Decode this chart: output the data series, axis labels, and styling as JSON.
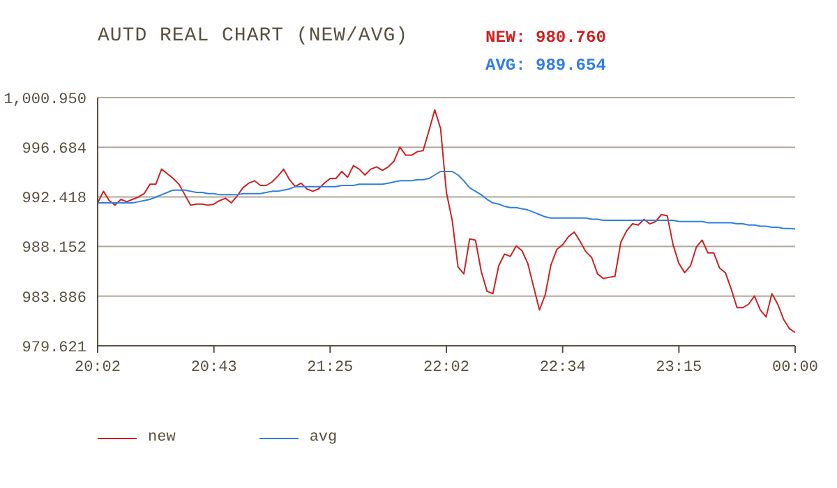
{
  "chart_data": {
    "type": "line",
    "title": "AUTD REAL CHART (NEW/AVG)",
    "annotations": [
      "NEW: 980.760",
      "AVG: 989.654"
    ],
    "categories": [
      "20:02",
      null,
      null,
      null,
      null,
      null,
      null,
      null,
      null,
      null,
      null,
      null,
      null,
      null,
      null,
      null,
      null,
      null,
      null,
      null,
      "20:43",
      null,
      null,
      null,
      null,
      null,
      null,
      null,
      null,
      null,
      null,
      null,
      null,
      null,
      null,
      null,
      null,
      null,
      null,
      null,
      "21:25",
      null,
      null,
      null,
      null,
      null,
      null,
      null,
      null,
      null,
      null,
      null,
      null,
      null,
      null,
      null,
      null,
      null,
      null,
      null,
      "22:02",
      null,
      null,
      null,
      null,
      null,
      null,
      null,
      null,
      null,
      null,
      null,
      null,
      null,
      null,
      null,
      null,
      null,
      null,
      null,
      "22:34",
      null,
      null,
      null,
      null,
      null,
      null,
      null,
      null,
      null,
      null,
      null,
      null,
      null,
      null,
      null,
      null,
      null,
      null,
      null,
      "23:15",
      null,
      null,
      null,
      null,
      null,
      null,
      null,
      null,
      null,
      null,
      null,
      null,
      null,
      null,
      null,
      null,
      null,
      null,
      null,
      "00:00"
    ],
    "ylim": [
      979.621,
      1000.95
    ],
    "yticks": [
      979.621,
      983.886,
      988.152,
      992.418,
      996.684,
      {
        "value": 1000.95,
        "label": "1,000.950"
      }
    ],
    "grid": "y",
    "legend": "bottom left",
    "marker": "none",
    "line_style": "solid",
    "series": [
      {
        "name": "new",
        "color": "#cc2222",
        "values": [
          991.9,
          992.9,
          992.1,
          991.7,
          992.2,
          992.0,
          992.2,
          992.4,
          992.7,
          993.5,
          993.5,
          994.8,
          994.4,
          994.0,
          993.5,
          992.6,
          991.7,
          991.8,
          991.8,
          991.7,
          991.8,
          992.1,
          992.3,
          991.9,
          992.5,
          993.2,
          993.6,
          993.8,
          993.4,
          993.4,
          993.7,
          994.2,
          994.8,
          993.9,
          993.3,
          993.6,
          993.1,
          992.9,
          993.1,
          993.6,
          994.0,
          994.0,
          994.6,
          994.1,
          995.1,
          994.8,
          994.3,
          994.8,
          995.0,
          994.7,
          995.0,
          995.5,
          996.7,
          996.0,
          996.0,
          996.3,
          996.4,
          998.1,
          999.9,
          998.3,
          992.8,
          990.4,
          986.4,
          985.8,
          988.8,
          988.7,
          986.0,
          984.3,
          984.1,
          986.5,
          987.5,
          987.3,
          988.2,
          987.8,
          986.7,
          984.7,
          982.7,
          984.0,
          986.6,
          987.9,
          988.3,
          989.0,
          989.4,
          988.6,
          987.7,
          987.2,
          985.8,
          985.4,
          985.5,
          985.6,
          988.5,
          989.5,
          990.1,
          990.0,
          990.5,
          990.1,
          990.3,
          990.9,
          990.8,
          988.3,
          986.7,
          985.9,
          986.5,
          988.1,
          988.7,
          987.6,
          987.6,
          986.3,
          985.9,
          984.5,
          982.9,
          982.9,
          983.2,
          983.9,
          982.7,
          982.1,
          984.1,
          983.2,
          981.9,
          981.1,
          980.76
        ]
      },
      {
        "name": "avg",
        "color": "#2f7fe0",
        "values": [
          991.9,
          991.9,
          991.9,
          991.9,
          991.9,
          991.9,
          991.9,
          992.0,
          992.1,
          992.2,
          992.4,
          992.6,
          992.8,
          993.0,
          993.0,
          993.0,
          992.9,
          992.8,
          992.8,
          992.7,
          992.7,
          992.6,
          992.6,
          992.6,
          992.6,
          992.7,
          992.7,
          992.7,
          992.7,
          992.8,
          992.9,
          992.9,
          993.0,
          993.1,
          993.3,
          993.3,
          993.3,
          993.3,
          993.3,
          993.3,
          993.3,
          993.3,
          993.4,
          993.4,
          993.4,
          993.5,
          993.5,
          993.5,
          993.5,
          993.5,
          993.6,
          993.7,
          993.8,
          993.8,
          993.8,
          993.9,
          993.9,
          994.0,
          994.3,
          994.6,
          994.6,
          994.6,
          994.3,
          993.8,
          993.2,
          992.9,
          992.6,
          992.2,
          991.9,
          991.8,
          991.6,
          991.5,
          991.5,
          991.4,
          991.3,
          991.1,
          990.9,
          990.7,
          990.6,
          990.6,
          990.6,
          990.6,
          990.6,
          990.6,
          990.6,
          990.5,
          990.5,
          990.4,
          990.4,
          990.4,
          990.4,
          990.4,
          990.4,
          990.4,
          990.4,
          990.4,
          990.4,
          990.4,
          990.4,
          990.4,
          990.3,
          990.3,
          990.3,
          990.3,
          990.3,
          990.2,
          990.2,
          990.2,
          990.2,
          990.2,
          990.1,
          990.1,
          990.0,
          990.0,
          989.9,
          989.9,
          989.8,
          989.8,
          989.7,
          989.7,
          989.654
        ]
      }
    ]
  }
}
